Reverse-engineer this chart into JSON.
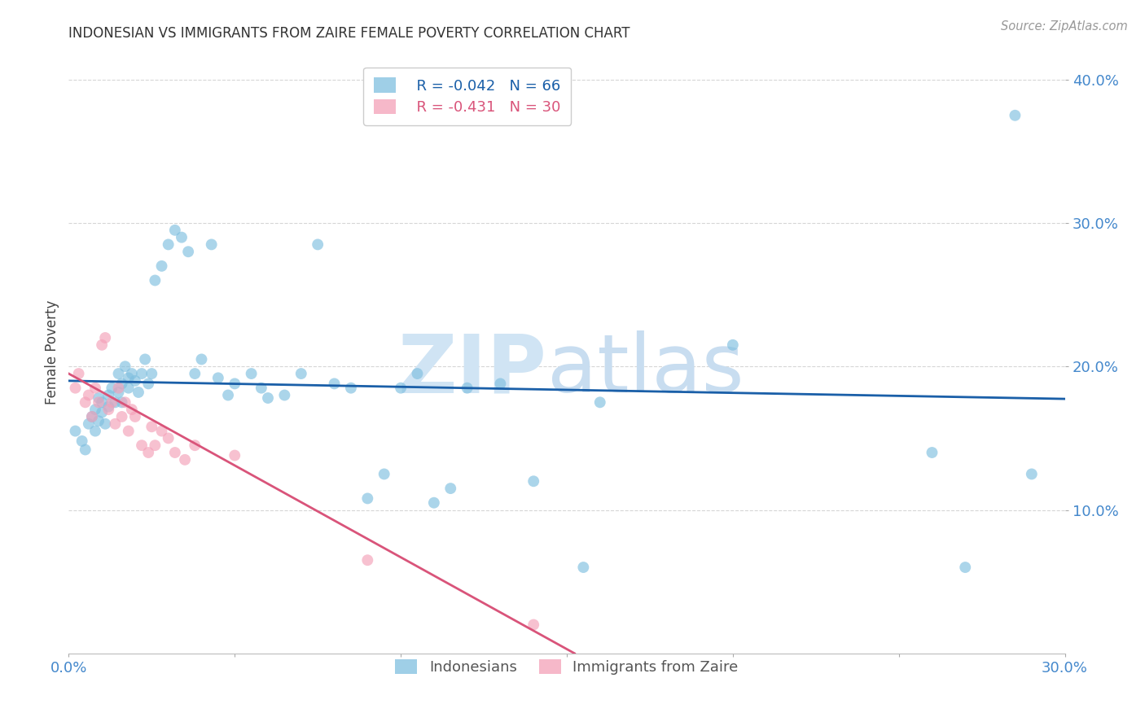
{
  "title": "INDONESIAN VS IMMIGRANTS FROM ZAIRE FEMALE POVERTY CORRELATION CHART",
  "source": "Source: ZipAtlas.com",
  "ylabel": "Female Poverty",
  "xlim": [
    0.0,
    0.3
  ],
  "ylim": [
    0.0,
    0.42
  ],
  "blue_color": "#7fbfdf",
  "pink_color": "#f4a0b8",
  "blue_line_color": "#1a5fa8",
  "pink_line_color": "#d9547a",
  "grid_color": "#cccccc",
  "title_color": "#333333",
  "axis_label_color": "#4488cc",
  "watermark_zip_color": "#d0e4f4",
  "watermark_atlas_color": "#c8ddf0",
  "background_color": "#ffffff",
  "legend_r_indonesian": "R = -0.042",
  "legend_n_indonesian": "N = 66",
  "legend_r_zaire": "R = -0.431",
  "legend_n_zaire": "N = 30",
  "indonesian_x": [
    0.002,
    0.004,
    0.005,
    0.006,
    0.007,
    0.008,
    0.008,
    0.009,
    0.009,
    0.01,
    0.01,
    0.011,
    0.012,
    0.012,
    0.013,
    0.014,
    0.015,
    0.015,
    0.016,
    0.016,
    0.017,
    0.018,
    0.018,
    0.019,
    0.02,
    0.021,
    0.022,
    0.023,
    0.024,
    0.025,
    0.026,
    0.028,
    0.03,
    0.032,
    0.034,
    0.036,
    0.038,
    0.04,
    0.043,
    0.045,
    0.048,
    0.05,
    0.055,
    0.058,
    0.06,
    0.065,
    0.07,
    0.075,
    0.08,
    0.085,
    0.09,
    0.095,
    0.1,
    0.105,
    0.11,
    0.115,
    0.12,
    0.13,
    0.14,
    0.155,
    0.16,
    0.2,
    0.26,
    0.27,
    0.285,
    0.29
  ],
  "indonesian_y": [
    0.155,
    0.148,
    0.142,
    0.16,
    0.165,
    0.17,
    0.155,
    0.178,
    0.162,
    0.168,
    0.175,
    0.16,
    0.172,
    0.18,
    0.185,
    0.175,
    0.195,
    0.182,
    0.188,
    0.175,
    0.2,
    0.192,
    0.185,
    0.195,
    0.19,
    0.182,
    0.195,
    0.205,
    0.188,
    0.195,
    0.26,
    0.27,
    0.285,
    0.295,
    0.29,
    0.28,
    0.195,
    0.205,
    0.285,
    0.192,
    0.18,
    0.188,
    0.195,
    0.185,
    0.178,
    0.18,
    0.195,
    0.285,
    0.188,
    0.185,
    0.108,
    0.125,
    0.185,
    0.195,
    0.105,
    0.115,
    0.185,
    0.188,
    0.12,
    0.06,
    0.175,
    0.215,
    0.14,
    0.06,
    0.375,
    0.125
  ],
  "zaire_x": [
    0.002,
    0.003,
    0.005,
    0.006,
    0.007,
    0.008,
    0.009,
    0.01,
    0.011,
    0.012,
    0.013,
    0.014,
    0.015,
    0.016,
    0.017,
    0.018,
    0.019,
    0.02,
    0.022,
    0.024,
    0.025,
    0.026,
    0.028,
    0.03,
    0.032,
    0.035,
    0.038,
    0.05,
    0.09,
    0.14
  ],
  "zaire_y": [
    0.185,
    0.195,
    0.175,
    0.18,
    0.165,
    0.185,
    0.175,
    0.215,
    0.22,
    0.17,
    0.175,
    0.16,
    0.185,
    0.165,
    0.175,
    0.155,
    0.17,
    0.165,
    0.145,
    0.14,
    0.158,
    0.145,
    0.155,
    0.15,
    0.14,
    0.135,
    0.145,
    0.138,
    0.065,
    0.02
  ],
  "blue_intercept": 0.19,
  "blue_slope": -0.042,
  "pink_intercept": 0.195,
  "pink_slope": -1.28
}
